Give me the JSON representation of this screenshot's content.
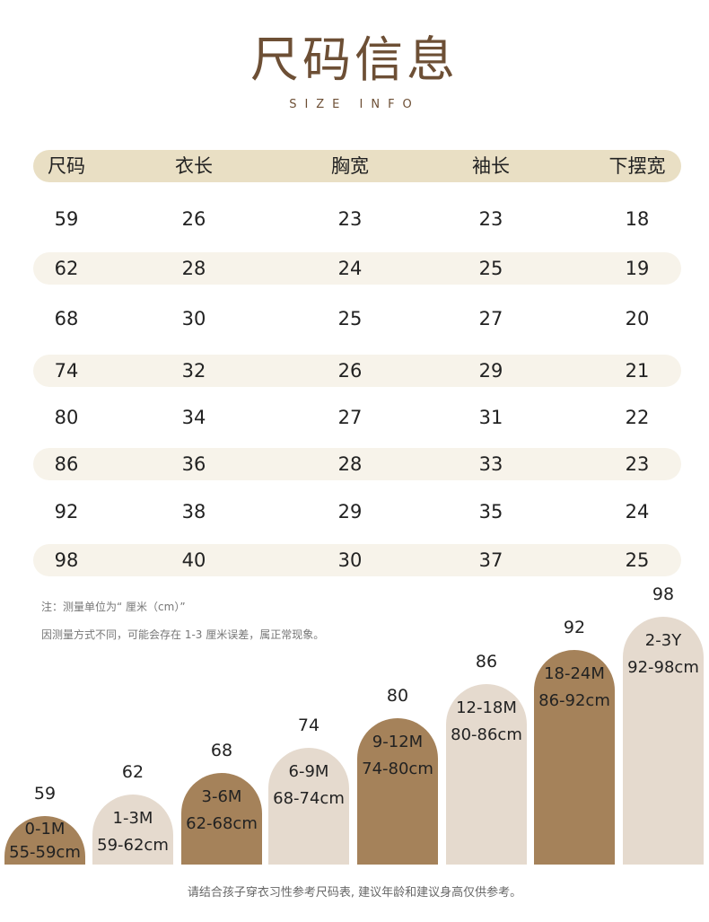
{
  "title": "尺码信息",
  "subtitle": "SIZE INFO",
  "table": {
    "headers": [
      "尺码",
      "衣长",
      "胸宽",
      "袖长",
      "下摆宽"
    ],
    "rows": [
      [
        "59",
        "26",
        "23",
        "23",
        "18"
      ],
      [
        "62",
        "28",
        "24",
        "25",
        "19"
      ],
      [
        "68",
        "30",
        "25",
        "27",
        "20"
      ],
      [
        "74",
        "32",
        "26",
        "29",
        "21"
      ],
      [
        "80",
        "34",
        "27",
        "31",
        "22"
      ],
      [
        "86",
        "36",
        "28",
        "33",
        "23"
      ],
      [
        "92",
        "38",
        "29",
        "35",
        "24"
      ],
      [
        "98",
        "40",
        "30",
        "37",
        "25"
      ]
    ]
  },
  "notes": [
    "注：测量单位为“ 厘米（cm）”",
    "因测量方式不同，可能会存在 1-3 厘米误差，属正常现象。"
  ],
  "sizes": [
    {
      "size": "59",
      "age": "0-1M",
      "height": "55-59cm",
      "color": "#a5825a"
    },
    {
      "size": "62",
      "age": "1-3M",
      "height": "59-62cm",
      "color": "#e5dace"
    },
    {
      "size": "68",
      "age": "3-6M",
      "height": "62-68cm",
      "color": "#a5825a"
    },
    {
      "size": "74",
      "age": "6-9M",
      "height": "68-74cm",
      "color": "#e5dace"
    },
    {
      "size": "80",
      "age": "9-12M",
      "height": "74-80cm",
      "color": "#a5825a"
    },
    {
      "size": "86",
      "age": "12-18M",
      "height": "80-86cm",
      "color": "#e5dace"
    },
    {
      "size": "92",
      "age": "18-24M",
      "height": "86-92cm",
      "color": "#a5825a"
    },
    {
      "size": "98",
      "age": "2-3Y",
      "height": "92-98cm",
      "color": "#e5dace"
    }
  ],
  "footer": "请结合孩子穿衣习性参考尺码表, 建议年龄和建议身高仅供参考。"
}
